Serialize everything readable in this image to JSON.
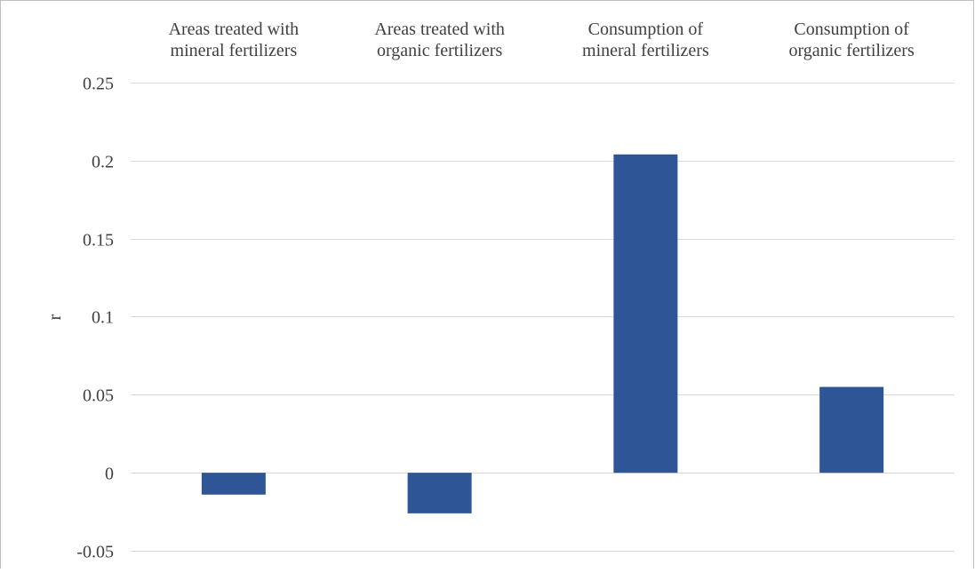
{
  "chart_data": {
    "type": "bar",
    "categories": [
      [
        "Areas treated with",
        "mineral fertilizers"
      ],
      [
        "Areas treated with",
        "organic fertilizers"
      ],
      [
        "Consumption of",
        "mineral fertilizers"
      ],
      [
        "Consumption of",
        "organic fertilizers"
      ]
    ],
    "values": [
      -0.014,
      -0.026,
      0.204,
      0.055
    ],
    "ylabel": "r",
    "ylim": [
      -0.05,
      0.25
    ],
    "yticks": [
      -0.05,
      0,
      0.05,
      0.1,
      0.15,
      0.2,
      0.25
    ],
    "ytick_labels": [
      "-0.05",
      "0",
      "0.05",
      "0.1",
      "0.15",
      "0.2",
      "0.25"
    ],
    "category_labels_position": "top",
    "grid": true,
    "legend": false,
    "bar_color": "#2E5595",
    "grid_color": "#D9D9D9",
    "border_color": "#BFBFBF",
    "text_color": "#404040"
  }
}
